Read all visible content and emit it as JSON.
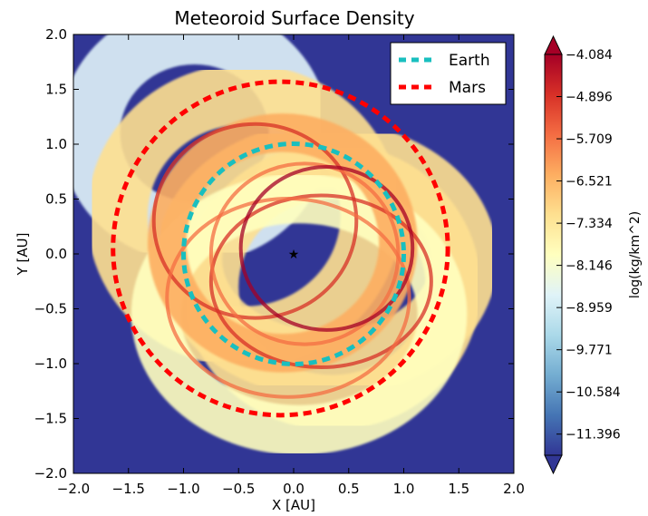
{
  "chart_data": {
    "type": "heatmap",
    "title": "Meteoroid Surface Density",
    "xlabel": "X [AU]",
    "ylabel": "Y [AU]",
    "xlim": [
      -2.0,
      2.0
    ],
    "ylim": [
      -2.0,
      2.0
    ],
    "x_ticks": [
      "−2.0",
      "−1.5",
      "−1.0",
      "−0.5",
      "0.0",
      "0.5",
      "1.0",
      "1.5",
      "2.0"
    ],
    "y_ticks": [
      "−2.0",
      "−1.5",
      "−1.0",
      "−0.5",
      "0.0",
      "0.5",
      "1.0",
      "1.5",
      "2.0"
    ],
    "background_color": "#313695",
    "colormap": "RdYlBu_r",
    "colorbar": {
      "label": "log(kg/km^2)",
      "range": [
        -11.803,
        -4.084
      ],
      "ticks": [
        "−4.084",
        "−4.896",
        "−5.709",
        "−6.521",
        "−7.334",
        "−8.146",
        "−8.959",
        "−9.771",
        "−10.584",
        "−11.396"
      ],
      "colors": [
        "#313695",
        "#4575b4",
        "#74add1",
        "#abd9e9",
        "#e0f3f8",
        "#ffffbf",
        "#fee090",
        "#fdae61",
        "#f46d43",
        "#d73027",
        "#a50026"
      ]
    },
    "series": [
      {
        "name": "Earth",
        "type": "orbit",
        "color": "#19bfbf",
        "a": 1.0,
        "e": 0.0167,
        "center": [
          0.0,
          0.0
        ]
      },
      {
        "name": "Mars",
        "type": "orbit",
        "color": "#ff0000",
        "a": 1.52,
        "e": 0.0934,
        "center": [
          -0.12,
          0.05
        ]
      }
    ],
    "sun": {
      "symbol": "★",
      "x": 0.0,
      "y": 0.0
    },
    "legend_position": "top-right",
    "grid": false
  }
}
